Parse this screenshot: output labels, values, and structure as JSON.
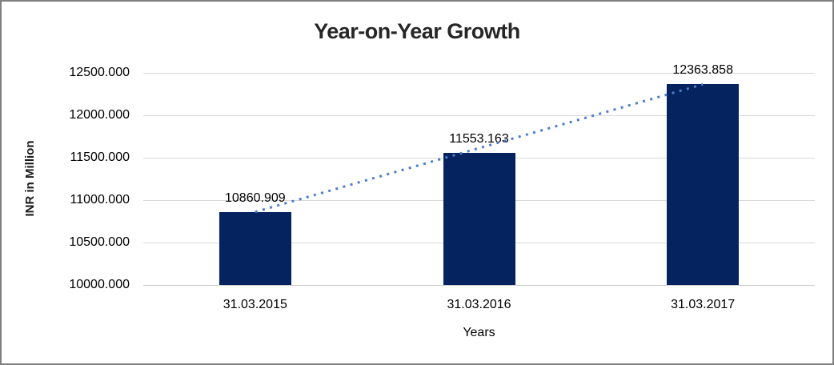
{
  "chart_data": {
    "type": "bar",
    "title": "Year-on-Year Growth",
    "xlabel": "Years",
    "ylabel": "INR in Million",
    "categories": [
      "31.03.2015",
      "31.03.2016",
      "31.03.2017"
    ],
    "values": [
      10860.909,
      11553.163,
      12363.858
    ],
    "data_labels": [
      "10860.909",
      "11553.163",
      "12363.858"
    ],
    "ylim": [
      10000,
      12500
    ],
    "yticks": [
      10000,
      10500,
      11000,
      11500,
      12000,
      12500
    ],
    "ytick_labels": [
      "10000.000",
      "10500.000",
      "11000.000",
      "11500.000",
      "12000.000",
      "12500.000"
    ],
    "grid": true,
    "legend": false,
    "trendline": {
      "type": "linear",
      "style": "dotted",
      "from_value": 10860.909,
      "to_value": 12363.858
    }
  },
  "colors": {
    "bar": "#04235F",
    "trendline": "#4E7EC8",
    "gridline": "#D9D9D9",
    "axis_line": "#C9C9C9",
    "title_text": "#262626",
    "label_text": "#000000",
    "background": "#FFFFFF",
    "frame_border": "#808080"
  }
}
